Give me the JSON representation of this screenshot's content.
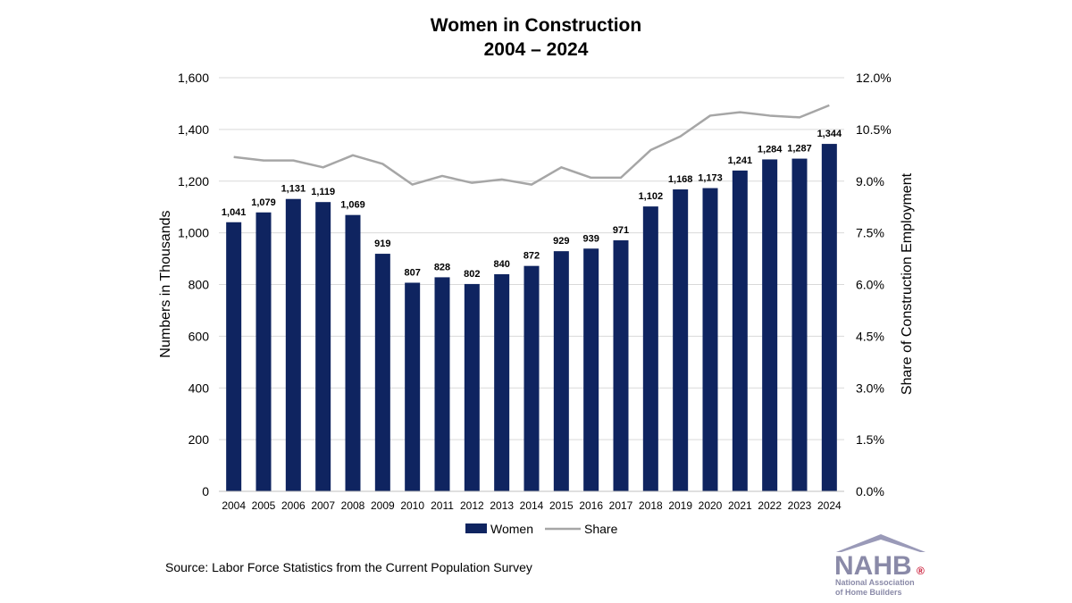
{
  "chart_data": {
    "type": "bar",
    "title": "Women in Construction",
    "subtitle": "2004 – 2024",
    "categories": [
      "2004",
      "2005",
      "2006",
      "2007",
      "2008",
      "2009",
      "2010",
      "2011",
      "2012",
      "2013",
      "2014",
      "2015",
      "2016",
      "2017",
      "2018",
      "2019",
      "2020",
      "2021",
      "2022",
      "2023",
      "2024"
    ],
    "series": [
      {
        "name": "Women",
        "type": "bar",
        "axis": "left",
        "color": "#0f2460",
        "values": [
          1041,
          1079,
          1131,
          1119,
          1069,
          919,
          807,
          828,
          802,
          840,
          872,
          929,
          939,
          971,
          1102,
          1168,
          1173,
          1241,
          1284,
          1287,
          1344
        ],
        "labels": [
          "1,041",
          "1,079",
          "1,131",
          "1,119",
          "1,069",
          "919",
          "807",
          "828",
          "802",
          "840",
          "872",
          "929",
          "939",
          "971",
          "1,102",
          "1,168",
          "1,173",
          "1,241",
          "1,284",
          "1,287",
          "1,344"
        ]
      },
      {
        "name": "Share",
        "type": "line",
        "axis": "right",
        "color": "#a6a6a6",
        "values": [
          9.7,
          9.6,
          9.6,
          9.4,
          9.75,
          9.5,
          8.9,
          9.15,
          8.95,
          9.05,
          8.9,
          9.4,
          9.1,
          9.1,
          9.9,
          10.3,
          10.9,
          11.0,
          10.9,
          10.85,
          11.2
        ]
      }
    ],
    "ylabel": "Numbers in Thousands",
    "y2label": "Share of Construction Employment",
    "ylim": [
      0,
      1600
    ],
    "y2lim": [
      0,
      12
    ],
    "yticks": [
      "0",
      "200",
      "400",
      "600",
      "800",
      "1,000",
      "1,200",
      "1,400",
      "1,600"
    ],
    "y2ticks": [
      "0.0%",
      "1.5%",
      "3.0%",
      "4.5%",
      "6.0%",
      "7.5%",
      "9.0%",
      "10.5%",
      "12.0%"
    ],
    "grid": true,
    "legend_position": "bottom",
    "source": "Source: Labor Force Statistics from the Current Population Survey"
  },
  "logo": {
    "text": "NAHB",
    "registered": "®",
    "line1": "National Association",
    "line2": "of Home Builders",
    "roof_color": "#9a9ab8",
    "text_color": "#8a8aa8",
    "mark_color": "#c8102e"
  }
}
